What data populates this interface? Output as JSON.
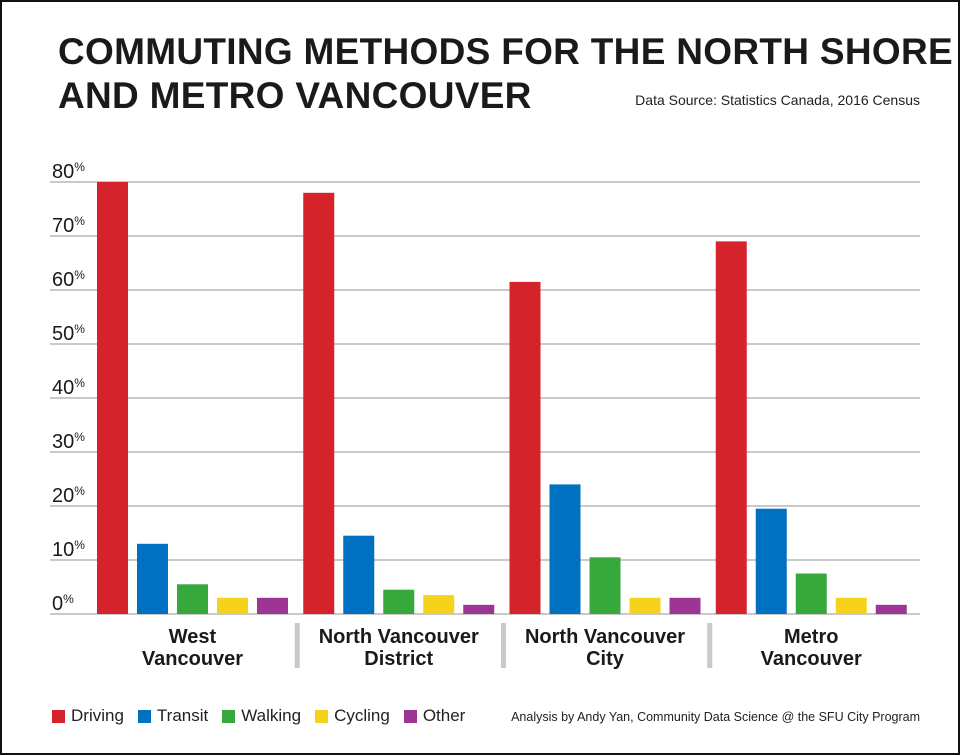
{
  "title_line1": "COMMUTING METHODS FOR THE NORTH SHORE",
  "title_line2": "AND METRO VANCOUVER",
  "source": "Data Source: Statistics Canada, 2016 Census",
  "credit": "Analysis by Andy Yan, Community Data Science @ the SFU City Program",
  "colors": {
    "Driving": "#d4232b",
    "Transit": "#0071c0",
    "Walking": "#37a93c",
    "Cycling": "#f7d21b",
    "Other": "#9c3593",
    "grid": "#c9c9c9",
    "divider": "#c9c9c9"
  },
  "chart_data": {
    "type": "bar",
    "categories": [
      [
        "West",
        "Vancouver"
      ],
      [
        "North Vancouver",
        "District"
      ],
      [
        "North Vancouver",
        "City"
      ],
      [
        "Metro",
        "Vancouver"
      ]
    ],
    "series": [
      {
        "name": "Driving",
        "values": [
          80,
          78,
          61.5,
          69
        ]
      },
      {
        "name": "Transit",
        "values": [
          13,
          14.5,
          24,
          19.5
        ]
      },
      {
        "name": "Walking",
        "values": [
          5.5,
          4.5,
          10.5,
          7.5
        ]
      },
      {
        "name": "Cycling",
        "values": [
          3,
          3.5,
          3,
          3
        ]
      },
      {
        "name": "Other",
        "values": [
          3,
          1.7,
          3,
          1.7
        ]
      }
    ],
    "yticks": [
      0,
      10,
      20,
      30,
      40,
      50,
      60,
      70,
      80
    ],
    "ytick_suffix": "%",
    "ylim": [
      0,
      80
    ],
    "grid": true,
    "legend": "bottom-left"
  }
}
